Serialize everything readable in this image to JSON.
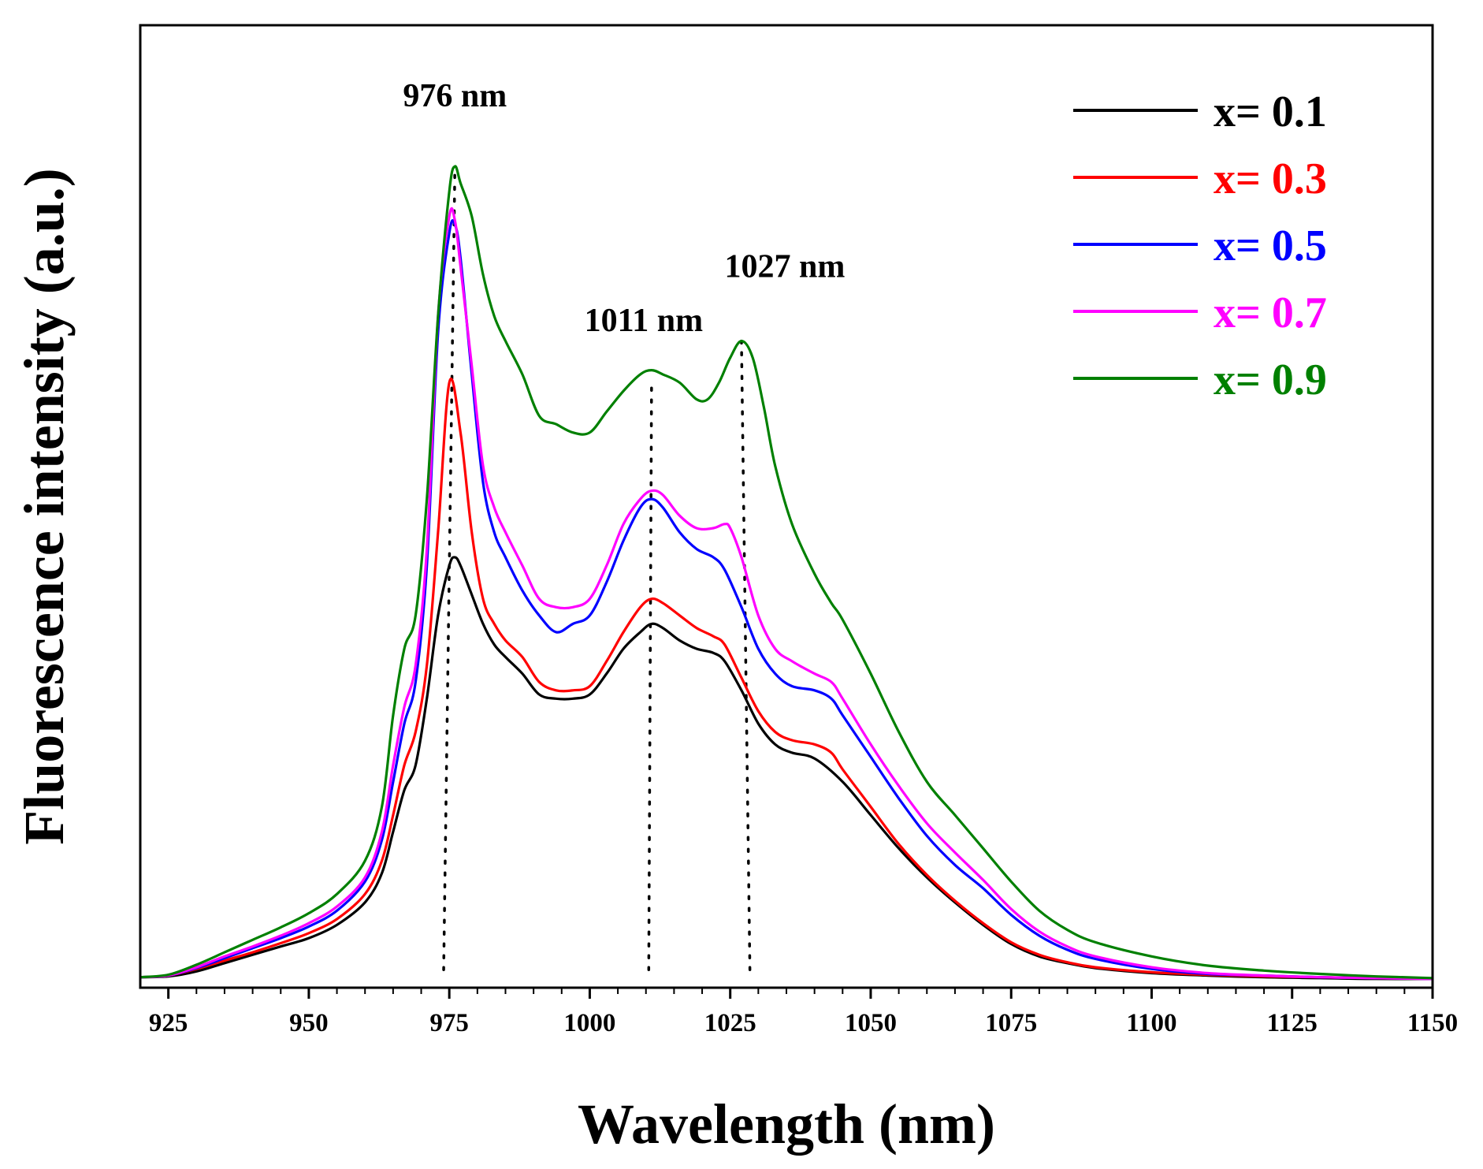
{
  "chart_data": {
    "type": "line",
    "title": "",
    "xlabel": "Wavelength (nm)",
    "ylabel": "Fluorescence intensity (a.u.)",
    "xlim": [
      920,
      1150
    ],
    "ylim": [
      0,
      1
    ],
    "xticks": [
      925,
      950,
      975,
      1000,
      1025,
      1050,
      1075,
      1100,
      1125,
      1150
    ],
    "grid": false,
    "legend_position": "top-right",
    "annotations": [
      {
        "text": "976 nm",
        "x": 976,
        "y": 1.0,
        "line_from": [
          974,
          0.014
        ],
        "line_to": [
          976,
          0.98
        ]
      },
      {
        "text": "1011 nm",
        "x": 1011,
        "y": 0.73,
        "line_from": [
          1010.5,
          0.014
        ],
        "line_to": [
          1011,
          0.72
        ]
      },
      {
        "text": "1027 nm",
        "x": 1027,
        "y": 0.79,
        "line_from": [
          1028.5,
          0.014
        ],
        "line_to": [
          1027,
          0.77
        ]
      }
    ],
    "series": [
      {
        "name": "x= 0.1",
        "color": "#000000",
        "x": [
          920,
          925,
          930,
          935,
          940,
          945,
          950,
          955,
          960,
          963,
          965,
          967,
          969,
          971,
          973,
          975,
          976,
          977,
          979,
          981,
          983,
          985,
          988,
          991,
          994,
          997,
          1000,
          1003,
          1006,
          1009,
          1011,
          1013,
          1016,
          1019,
          1022,
          1024,
          1027,
          1030,
          1033,
          1036,
          1040,
          1045,
          1050,
          1055,
          1060,
          1065,
          1070,
          1075,
          1080,
          1085,
          1090,
          1100,
          1110,
          1120,
          1130,
          1140,
          1150
        ],
        "y": [
          0.005,
          0.006,
          0.012,
          0.022,
          0.032,
          0.042,
          0.052,
          0.068,
          0.095,
          0.13,
          0.18,
          0.23,
          0.26,
          0.34,
          0.44,
          0.5,
          0.51,
          0.5,
          0.465,
          0.43,
          0.405,
          0.39,
          0.37,
          0.345,
          0.34,
          0.34,
          0.345,
          0.37,
          0.4,
          0.42,
          0.43,
          0.425,
          0.41,
          0.4,
          0.395,
          0.385,
          0.35,
          0.31,
          0.285,
          0.275,
          0.268,
          0.24,
          0.2,
          0.16,
          0.125,
          0.095,
          0.068,
          0.045,
          0.03,
          0.022,
          0.016,
          0.01,
          0.007,
          0.005,
          0.004,
          0.003,
          0.003
        ]
      },
      {
        "name": "x= 0.3",
        "color": "#ff0000",
        "x": [
          920,
          925,
          930,
          935,
          940,
          945,
          950,
          955,
          960,
          963,
          965,
          967,
          969,
          971,
          973,
          975,
          977,
          979,
          981,
          983,
          985,
          988,
          991,
          994,
          997,
          1000,
          1003,
          1006,
          1009,
          1011,
          1013,
          1016,
          1019,
          1022,
          1024,
          1027,
          1030,
          1033,
          1036,
          1040,
          1043,
          1045,
          1050,
          1055,
          1060,
          1065,
          1070,
          1075,
          1080,
          1085,
          1090,
          1100,
          1110,
          1120,
          1130,
          1140,
          1150
        ],
        "y": [
          0.005,
          0.007,
          0.015,
          0.025,
          0.035,
          0.046,
          0.058,
          0.075,
          0.105,
          0.145,
          0.2,
          0.26,
          0.3,
          0.38,
          0.54,
          0.72,
          0.66,
          0.54,
          0.46,
          0.43,
          0.41,
          0.39,
          0.36,
          0.35,
          0.35,
          0.355,
          0.385,
          0.42,
          0.45,
          0.46,
          0.455,
          0.44,
          0.425,
          0.415,
          0.405,
          0.365,
          0.325,
          0.3,
          0.29,
          0.285,
          0.275,
          0.255,
          0.21,
          0.165,
          0.128,
          0.097,
          0.07,
          0.047,
          0.032,
          0.023,
          0.017,
          0.011,
          0.008,
          0.006,
          0.005,
          0.004,
          0.003
        ]
      },
      {
        "name": "x= 0.5",
        "color": "#0000ff",
        "x": [
          920,
          925,
          930,
          935,
          940,
          945,
          950,
          955,
          960,
          963,
          965,
          967,
          969,
          971,
          973,
          975,
          976,
          977,
          979,
          981,
          983,
          985,
          988,
          991,
          994,
          997,
          1000,
          1003,
          1006,
          1009,
          1011,
          1013,
          1016,
          1019,
          1022,
          1024,
          1027,
          1030,
          1033,
          1036,
          1040,
          1043,
          1045,
          1050,
          1055,
          1060,
          1065,
          1070,
          1075,
          1080,
          1085,
          1090,
          1100,
          1110,
          1120,
          1130,
          1140,
          1150
        ],
        "y": [
          0.005,
          0.007,
          0.016,
          0.028,
          0.04,
          0.052,
          0.066,
          0.085,
          0.12,
          0.17,
          0.24,
          0.31,
          0.36,
          0.5,
          0.78,
          0.9,
          0.91,
          0.87,
          0.73,
          0.6,
          0.54,
          0.51,
          0.47,
          0.44,
          0.42,
          0.43,
          0.44,
          0.48,
          0.53,
          0.57,
          0.58,
          0.57,
          0.54,
          0.52,
          0.51,
          0.495,
          0.45,
          0.4,
          0.37,
          0.355,
          0.35,
          0.34,
          0.32,
          0.27,
          0.22,
          0.175,
          0.14,
          0.112,
          0.08,
          0.055,
          0.038,
          0.027,
          0.015,
          0.009,
          0.007,
          0.005,
          0.004,
          0.003
        ]
      },
      {
        "name": "x= 0.7",
        "color": "#ff00ff",
        "x": [
          920,
          925,
          930,
          935,
          940,
          945,
          950,
          955,
          960,
          963,
          965,
          967,
          969,
          971,
          973,
          975,
          976,
          977,
          979,
          981,
          983,
          985,
          988,
          991,
          994,
          997,
          1000,
          1003,
          1006,
          1009,
          1011,
          1013,
          1016,
          1019,
          1022,
          1024,
          1025,
          1027,
          1030,
          1033,
          1036,
          1040,
          1043,
          1045,
          1050,
          1055,
          1060,
          1065,
          1070,
          1075,
          1080,
          1085,
          1090,
          1100,
          1110,
          1120,
          1130,
          1140,
          1150
        ],
        "y": [
          0.005,
          0.007,
          0.017,
          0.03,
          0.042,
          0.055,
          0.07,
          0.09,
          0.125,
          0.18,
          0.26,
          0.33,
          0.38,
          0.52,
          0.8,
          0.92,
          0.915,
          0.86,
          0.74,
          0.62,
          0.57,
          0.54,
          0.5,
          0.46,
          0.45,
          0.45,
          0.46,
          0.5,
          0.55,
          0.58,
          0.59,
          0.585,
          0.56,
          0.545,
          0.545,
          0.55,
          0.545,
          0.51,
          0.44,
          0.4,
          0.385,
          0.37,
          0.36,
          0.34,
          0.285,
          0.235,
          0.19,
          0.155,
          0.122,
          0.087,
          0.06,
          0.042,
          0.03,
          0.017,
          0.01,
          0.007,
          0.005,
          0.004,
          0.003
        ]
      },
      {
        "name": "x= 0.9",
        "color": "#008000",
        "x": [
          920,
          925,
          930,
          935,
          940,
          945,
          950,
          955,
          960,
          963,
          965,
          967,
          969,
          971,
          973,
          975,
          976,
          977,
          979,
          981,
          983,
          985,
          988,
          991,
          994,
          997,
          1000,
          1003,
          1006,
          1009,
          1011,
          1013,
          1016,
          1019,
          1021,
          1023,
          1025,
          1027,
          1029,
          1031,
          1033,
          1036,
          1040,
          1043,
          1045,
          1050,
          1055,
          1060,
          1065,
          1070,
          1075,
          1080,
          1085,
          1090,
          1100,
          1110,
          1120,
          1130,
          1140,
          1150
        ],
        "y": [
          0.005,
          0.008,
          0.02,
          0.035,
          0.05,
          0.065,
          0.082,
          0.105,
          0.145,
          0.21,
          0.32,
          0.4,
          0.44,
          0.58,
          0.8,
          0.95,
          0.98,
          0.96,
          0.92,
          0.85,
          0.8,
          0.77,
          0.73,
          0.68,
          0.67,
          0.66,
          0.66,
          0.685,
          0.71,
          0.73,
          0.735,
          0.73,
          0.72,
          0.7,
          0.7,
          0.72,
          0.75,
          0.77,
          0.75,
          0.69,
          0.62,
          0.55,
          0.49,
          0.455,
          0.435,
          0.37,
          0.3,
          0.24,
          0.2,
          0.16,
          0.12,
          0.085,
          0.062,
          0.047,
          0.03,
          0.019,
          0.013,
          0.009,
          0.006,
          0.004
        ]
      }
    ]
  }
}
